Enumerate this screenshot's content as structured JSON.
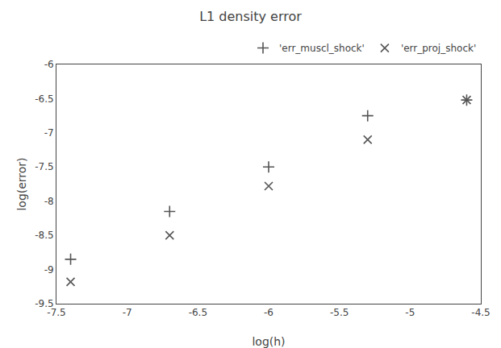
{
  "chart_data": {
    "type": "scatter",
    "title": "L1 density error",
    "xlabel": "log(h)",
    "ylabel": "log(error)",
    "xlim": [
      -7.5,
      -4.5
    ],
    "ylim": [
      -9.5,
      -6.0
    ],
    "xticks": [
      -7.5,
      -7,
      -6.5,
      -6,
      -5.5,
      -5,
      -4.5
    ],
    "yticks": [
      -9.5,
      -9,
      -8.5,
      -8,
      -7.5,
      -7,
      -6.5,
      -6
    ],
    "grid": false,
    "legend": "upper right",
    "series": [
      {
        "name": "'err_muscl_shock'",
        "color": "#555555",
        "marker": "plus",
        "x": [
          -7.4,
          -6.7,
          -6.0,
          -5.3,
          -4.6
        ],
        "values": [
          -8.85,
          -8.15,
          -7.5,
          -6.75,
          -6.52
        ]
      },
      {
        "name": "'err_proj_shock'",
        "color": "#555555",
        "marker": "x",
        "x": [
          -7.4,
          -6.7,
          -6.0,
          -5.3,
          -4.6
        ],
        "values": [
          -9.18,
          -8.5,
          -7.78,
          -7.1,
          -6.52
        ]
      }
    ]
  }
}
